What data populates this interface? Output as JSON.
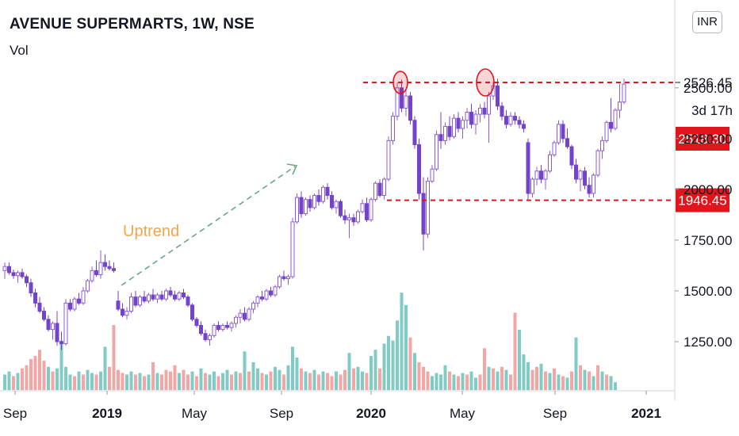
{
  "header": {
    "title": "AVENUE SUPERMARTS, 1W, NSE",
    "volume_label": "Vol",
    "currency": "INR"
  },
  "colors": {
    "up": "#8b5cd6",
    "up_body": "#ffffff",
    "down": "#7343c9",
    "vol_up": "#80cbc4",
    "vol_down": "#f4a6a4",
    "level": "#e0161c",
    "trend": "#6aa886"
  },
  "chart_data": {
    "type": "candlestick",
    "interval": "1W",
    "x_tick_labels": [
      "Sep",
      "2019",
      "May",
      "Sep",
      "2020",
      "May",
      "Sep",
      "2021"
    ],
    "y_tick_labels": [
      "1250.00",
      "1500.00",
      "1750.00",
      "2000.00",
      "2250.00",
      "2500.00"
    ],
    "ylim": [
      1080,
      2800
    ],
    "price_labels": [
      {
        "value": 2526.45,
        "text": "2526.45",
        "style": "outline"
      },
      {
        "value": 2518.3,
        "text": "2518.30",
        "style": "filled"
      },
      {
        "value": 1946.45,
        "text": "1946.45",
        "style": "filled"
      }
    ],
    "countdown": "3d 17h",
    "annotations": {
      "trend_label": "Uptrend",
      "resistance": 2526.45,
      "support": 1946.45,
      "double_top_markers": 2
    },
    "candles": [
      [
        1600,
        1640,
        1560,
        1620
      ],
      [
        1620,
        1640,
        1580,
        1590
      ],
      [
        1590,
        1605,
        1560,
        1575
      ],
      [
        1575,
        1600,
        1540,
        1590
      ],
      [
        1590,
        1610,
        1560,
        1570
      ],
      [
        1570,
        1580,
        1520,
        1540
      ],
      [
        1540,
        1560,
        1470,
        1490
      ],
      [
        1490,
        1510,
        1420,
        1440
      ],
      [
        1440,
        1470,
        1390,
        1400
      ],
      [
        1400,
        1420,
        1350,
        1360
      ],
      [
        1360,
        1380,
        1300,
        1310
      ],
      [
        1310,
        1350,
        1260,
        1340
      ],
      [
        1340,
        1400,
        1230,
        1250
      ],
      [
        1250,
        1300,
        1210,
        1240
      ],
      [
        1240,
        1460,
        1230,
        1440
      ],
      [
        1440,
        1460,
        1400,
        1410
      ],
      [
        1410,
        1470,
        1400,
        1460
      ],
      [
        1460,
        1490,
        1430,
        1440
      ],
      [
        1440,
        1520,
        1430,
        1500
      ],
      [
        1500,
        1560,
        1490,
        1550
      ],
      [
        1550,
        1620,
        1540,
        1600
      ],
      [
        1600,
        1650,
        1570,
        1580
      ],
      [
        1580,
        1700,
        1560,
        1640
      ],
      [
        1640,
        1680,
        1600,
        1620
      ],
      [
        1620,
        1650,
        1600,
        1610
      ],
      [
        1610,
        1640,
        1590,
        1600
      ],
      [
        1450,
        1500,
        1400,
        1410
      ],
      [
        1410,
        1440,
        1370,
        1380
      ],
      [
        1380,
        1420,
        1360,
        1400
      ],
      [
        1400,
        1490,
        1390,
        1470
      ],
      [
        1470,
        1500,
        1420,
        1430
      ],
      [
        1430,
        1480,
        1420,
        1470
      ],
      [
        1470,
        1500,
        1440,
        1450
      ],
      [
        1450,
        1490,
        1440,
        1480
      ],
      [
        1480,
        1510,
        1450,
        1460
      ],
      [
        1460,
        1490,
        1440,
        1480
      ],
      [
        1480,
        1500,
        1450,
        1460
      ],
      [
        1460,
        1510,
        1450,
        1500
      ],
      [
        1500,
        1520,
        1470,
        1480
      ],
      [
        1480,
        1500,
        1450,
        1460
      ],
      [
        1460,
        1500,
        1450,
        1490
      ],
      [
        1490,
        1510,
        1460,
        1470
      ],
      [
        1470,
        1480,
        1420,
        1430
      ],
      [
        1430,
        1440,
        1350,
        1360
      ],
      [
        1360,
        1370,
        1320,
        1330
      ],
      [
        1330,
        1350,
        1280,
        1290
      ],
      [
        1290,
        1310,
        1250,
        1260
      ],
      [
        1260,
        1290,
        1230,
        1280
      ],
      [
        1280,
        1340,
        1270,
        1330
      ],
      [
        1330,
        1350,
        1300,
        1310
      ],
      [
        1310,
        1340,
        1300,
        1330
      ],
      [
        1330,
        1350,
        1310,
        1320
      ],
      [
        1320,
        1350,
        1300,
        1340
      ],
      [
        1340,
        1380,
        1320,
        1370
      ],
      [
        1370,
        1410,
        1340,
        1390
      ],
      [
        1390,
        1420,
        1350,
        1360
      ],
      [
        1360,
        1420,
        1350,
        1410
      ],
      [
        1410,
        1450,
        1390,
        1440
      ],
      [
        1440,
        1480,
        1420,
        1470
      ],
      [
        1470,
        1500,
        1450,
        1460
      ],
      [
        1460,
        1510,
        1450,
        1500
      ],
      [
        1500,
        1520,
        1470,
        1480
      ],
      [
        1480,
        1530,
        1470,
        1520
      ],
      [
        1520,
        1580,
        1510,
        1570
      ],
      [
        1570,
        1600,
        1550,
        1560
      ],
      [
        1560,
        1580,
        1530,
        1570
      ],
      [
        1570,
        1860,
        1560,
        1840
      ],
      [
        1840,
        1980,
        1830,
        1960
      ],
      [
        1960,
        1990,
        1860,
        1880
      ],
      [
        1880,
        1960,
        1870,
        1950
      ],
      [
        1950,
        1970,
        1890,
        1910
      ],
      [
        1910,
        1980,
        1900,
        1970
      ],
      [
        1970,
        2000,
        1920,
        1940
      ],
      [
        1940,
        2020,
        1930,
        2010
      ],
      [
        2010,
        2030,
        1950,
        1970
      ],
      [
        1970,
        1990,
        1900,
        1910
      ],
      [
        1910,
        1950,
        1880,
        1940
      ],
      [
        1940,
        1950,
        1860,
        1870
      ],
      [
        1870,
        1900,
        1830,
        1850
      ],
      [
        1850,
        1880,
        1760,
        1860
      ],
      [
        1860,
        1880,
        1820,
        1840
      ],
      [
        1840,
        1900,
        1830,
        1890
      ],
      [
        1890,
        1950,
        1880,
        1930
      ],
      [
        1930,
        1960,
        1840,
        1850
      ],
      [
        1850,
        1960,
        1840,
        1950
      ],
      [
        1950,
        2040,
        1940,
        2030
      ],
      [
        2030,
        2050,
        1960,
        1970
      ],
      [
        1970,
        2060,
        1950,
        2050
      ],
      [
        2050,
        2260,
        2040,
        2240
      ],
      [
        2240,
        2380,
        2220,
        2360
      ],
      [
        2360,
        2526,
        2340,
        2500
      ],
      [
        2500,
        2540,
        2380,
        2400
      ],
      [
        2400,
        2490,
        2360,
        2460
      ],
      [
        2460,
        2480,
        2320,
        2340
      ],
      [
        2340,
        2360,
        2200,
        2220
      ],
      [
        2220,
        2250,
        1950,
        1980
      ],
      [
        1980,
        2060,
        1700,
        1780
      ],
      [
        1780,
        2060,
        1760,
        2040
      ],
      [
        2040,
        2120,
        2030,
        2100
      ],
      [
        2100,
        2290,
        2090,
        2270
      ],
      [
        2270,
        2380,
        2200,
        2240
      ],
      [
        2240,
        2330,
        2220,
        2310
      ],
      [
        2310,
        2360,
        2240,
        2260
      ],
      [
        2260,
        2370,
        2250,
        2350
      ],
      [
        2350,
        2380,
        2280,
        2300
      ],
      [
        2300,
        2360,
        2250,
        2340
      ],
      [
        2340,
        2400,
        2300,
        2380
      ],
      [
        2380,
        2420,
        2300,
        2320
      ],
      [
        2320,
        2390,
        2270,
        2370
      ],
      [
        2370,
        2420,
        2330,
        2400
      ],
      [
        2400,
        2430,
        2350,
        2370
      ],
      [
        2370,
        2480,
        2230,
        2460
      ],
      [
        2460,
        2530,
        2440,
        2510
      ],
      [
        2510,
        2545,
        2390,
        2410
      ],
      [
        2410,
        2430,
        2340,
        2360
      ],
      [
        2360,
        2390,
        2300,
        2320
      ],
      [
        2320,
        2380,
        2310,
        2360
      ],
      [
        2360,
        2380,
        2320,
        2340
      ],
      [
        2340,
        2360,
        2300,
        2320
      ],
      [
        2320,
        2340,
        2280,
        2300
      ],
      [
        2230,
        2250,
        1950,
        1980
      ],
      [
        1980,
        2060,
        1960,
        2050
      ],
      [
        2050,
        2110,
        2020,
        2090
      ],
      [
        2090,
        2120,
        2030,
        2050
      ],
      [
        2050,
        2100,
        2000,
        2090
      ],
      [
        2090,
        2190,
        2080,
        2170
      ],
      [
        2170,
        2240,
        2160,
        2230
      ],
      [
        2230,
        2340,
        2220,
        2320
      ],
      [
        2320,
        2340,
        2230,
        2250
      ],
      [
        2250,
        2300,
        2200,
        2210
      ],
      [
        2210,
        2220,
        2100,
        2120
      ],
      [
        2120,
        2150,
        2030,
        2050
      ],
      [
        2050,
        2100,
        1990,
        2090
      ],
      [
        2090,
        2110,
        2000,
        2020
      ],
      [
        2020,
        2060,
        1960,
        1980
      ],
      [
        1980,
        2080,
        1960,
        2070
      ],
      [
        2070,
        2200,
        2060,
        2190
      ],
      [
        2190,
        2260,
        2150,
        2240
      ],
      [
        2240,
        2340,
        2230,
        2330
      ],
      [
        2330,
        2450,
        2280,
        2300
      ],
      [
        2300,
        2400,
        2290,
        2390
      ],
      [
        2390,
        2520,
        2350,
        2430
      ],
      [
        2430,
        2545,
        2420,
        2518.3
      ]
    ],
    "volumes": [
      [
        0.1,
        1
      ],
      [
        0.12,
        1
      ],
      [
        0.09,
        0
      ],
      [
        0.11,
        1
      ],
      [
        0.14,
        0
      ],
      [
        0.16,
        0
      ],
      [
        0.2,
        0
      ],
      [
        0.22,
        0
      ],
      [
        0.26,
        0
      ],
      [
        0.19,
        0
      ],
      [
        0.15,
        1
      ],
      [
        0.12,
        0
      ],
      [
        0.14,
        1
      ],
      [
        0.32,
        1
      ],
      [
        0.15,
        1
      ],
      [
        0.1,
        1
      ],
      [
        0.09,
        0
      ],
      [
        0.12,
        1
      ],
      [
        0.1,
        0
      ],
      [
        0.13,
        1
      ],
      [
        0.11,
        1
      ],
      [
        0.1,
        0
      ],
      [
        0.12,
        1
      ],
      [
        0.28,
        1
      ],
      [
        0.15,
        0
      ],
      [
        0.42,
        0
      ],
      [
        0.13,
        0
      ],
      [
        0.11,
        0
      ],
      [
        0.1,
        1
      ],
      [
        0.12,
        1
      ],
      [
        0.1,
        0
      ],
      [
        0.11,
        1
      ],
      [
        0.09,
        0
      ],
      [
        0.1,
        1
      ],
      [
        0.18,
        0
      ],
      [
        0.11,
        1
      ],
      [
        0.1,
        0
      ],
      [
        0.13,
        0
      ],
      [
        0.12,
        0
      ],
      [
        0.16,
        0
      ],
      [
        0.11,
        1
      ],
      [
        0.13,
        0
      ],
      [
        0.1,
        0
      ],
      [
        0.12,
        1
      ],
      [
        0.09,
        0
      ],
      [
        0.14,
        1
      ],
      [
        0.11,
        0
      ],
      [
        0.1,
        1
      ],
      [
        0.12,
        1
      ],
      [
        0.09,
        0
      ],
      [
        0.11,
        1
      ],
      [
        0.13,
        1
      ],
      [
        0.1,
        0
      ],
      [
        0.12,
        1
      ],
      [
        0.11,
        0
      ],
      [
        0.25,
        1
      ],
      [
        0.12,
        0
      ],
      [
        0.18,
        1
      ],
      [
        0.14,
        1
      ],
      [
        0.11,
        0
      ],
      [
        0.1,
        1
      ],
      [
        0.12,
        0
      ],
      [
        0.15,
        1
      ],
      [
        0.13,
        1
      ],
      [
        0.1,
        0
      ],
      [
        0.16,
        1
      ],
      [
        0.28,
        1
      ],
      [
        0.21,
        1
      ],
      [
        0.14,
        0
      ],
      [
        0.12,
        1
      ],
      [
        0.11,
        0
      ],
      [
        0.13,
        1
      ],
      [
        0.1,
        0
      ],
      [
        0.12,
        1
      ],
      [
        0.11,
        0
      ],
      [
        0.09,
        0
      ],
      [
        0.12,
        1
      ],
      [
        0.1,
        0
      ],
      [
        0.13,
        0
      ],
      [
        0.24,
        1
      ],
      [
        0.14,
        0
      ],
      [
        0.15,
        1
      ],
      [
        0.12,
        1
      ],
      [
        0.11,
        0
      ],
      [
        0.22,
        1
      ],
      [
        0.26,
        1
      ],
      [
        0.14,
        0
      ],
      [
        0.3,
        1
      ],
      [
        0.35,
        1
      ],
      [
        0.32,
        1
      ],
      [
        0.45,
        1
      ],
      [
        0.63,
        1
      ],
      [
        0.55,
        1
      ],
      [
        0.34,
        0
      ],
      [
        0.24,
        1
      ],
      [
        0.18,
        0
      ],
      [
        0.15,
        0
      ],
      [
        0.12,
        0
      ],
      [
        0.09,
        1
      ],
      [
        0.11,
        1
      ],
      [
        0.1,
        1
      ],
      [
        0.16,
        1
      ],
      [
        0.12,
        0
      ],
      [
        0.1,
        1
      ],
      [
        0.09,
        0
      ],
      [
        0.11,
        1
      ],
      [
        0.1,
        0
      ],
      [
        0.12,
        1
      ],
      [
        0.08,
        1
      ],
      [
        0.1,
        0
      ],
      [
        0.27,
        0
      ],
      [
        0.15,
        1
      ],
      [
        0.14,
        0
      ],
      [
        0.12,
        1
      ],
      [
        0.15,
        0
      ],
      [
        0.13,
        1
      ],
      [
        0.1,
        0
      ],
      [
        0.5,
        0
      ],
      [
        0.39,
        1
      ],
      [
        0.23,
        1
      ],
      [
        0.18,
        1
      ],
      [
        0.13,
        0
      ],
      [
        0.15,
        0
      ],
      [
        0.17,
        1
      ],
      [
        0.12,
        0
      ],
      [
        0.11,
        1
      ],
      [
        0.14,
        0
      ],
      [
        0.1,
        1
      ],
      [
        0.09,
        0
      ],
      [
        0.08,
        1
      ],
      [
        0.12,
        0
      ],
      [
        0.34,
        1
      ],
      [
        0.16,
        0
      ],
      [
        0.13,
        1
      ],
      [
        0.12,
        0
      ],
      [
        0.09,
        1
      ],
      [
        0.16,
        0
      ],
      [
        0.12,
        1
      ],
      [
        0.1,
        0
      ],
      [
        0.09,
        1
      ],
      [
        0.05,
        1
      ]
    ]
  }
}
